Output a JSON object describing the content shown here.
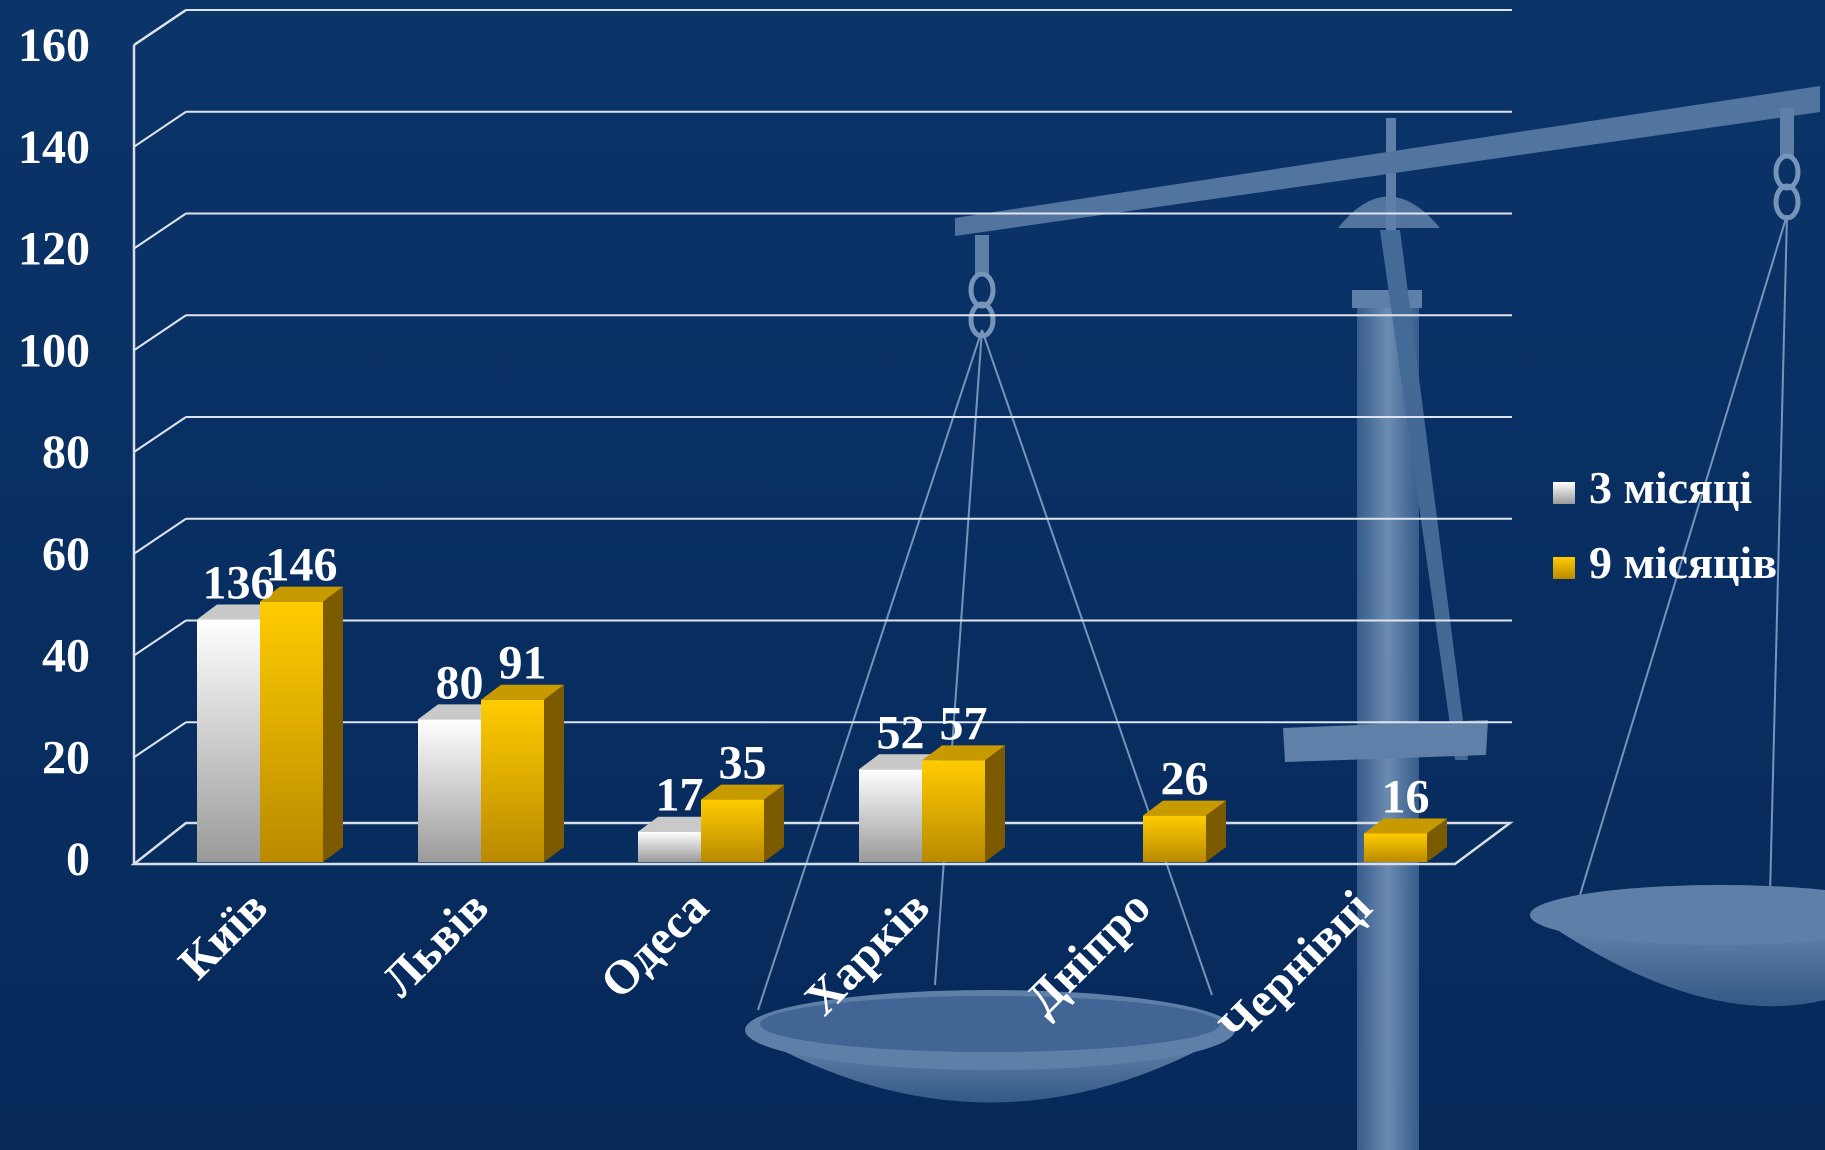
{
  "chart_data": {
    "type": "bar",
    "categories": [
      "Київ",
      "Львів",
      "Одеса",
      "Харків",
      "Дніпро",
      "Чернівці"
    ],
    "series": [
      {
        "name": "3 місяці",
        "values": [
          136,
          80,
          17,
          52,
          null,
          null
        ],
        "color": "#ececec"
      },
      {
        "name": "9 місяців",
        "values": [
          146,
          91,
          35,
          57,
          26,
          16
        ],
        "color": "#f2bb05"
      }
    ],
    "y_ticks": [
      "0",
      "20",
      "40",
      "60",
      "80",
      "100",
      "120",
      "140",
      "160"
    ],
    "ylim": [
      0,
      160
    ],
    "grid": true,
    "legend_position": "right",
    "background_color": "#0a3266",
    "title": "",
    "xlabel": "",
    "ylabel": ""
  }
}
